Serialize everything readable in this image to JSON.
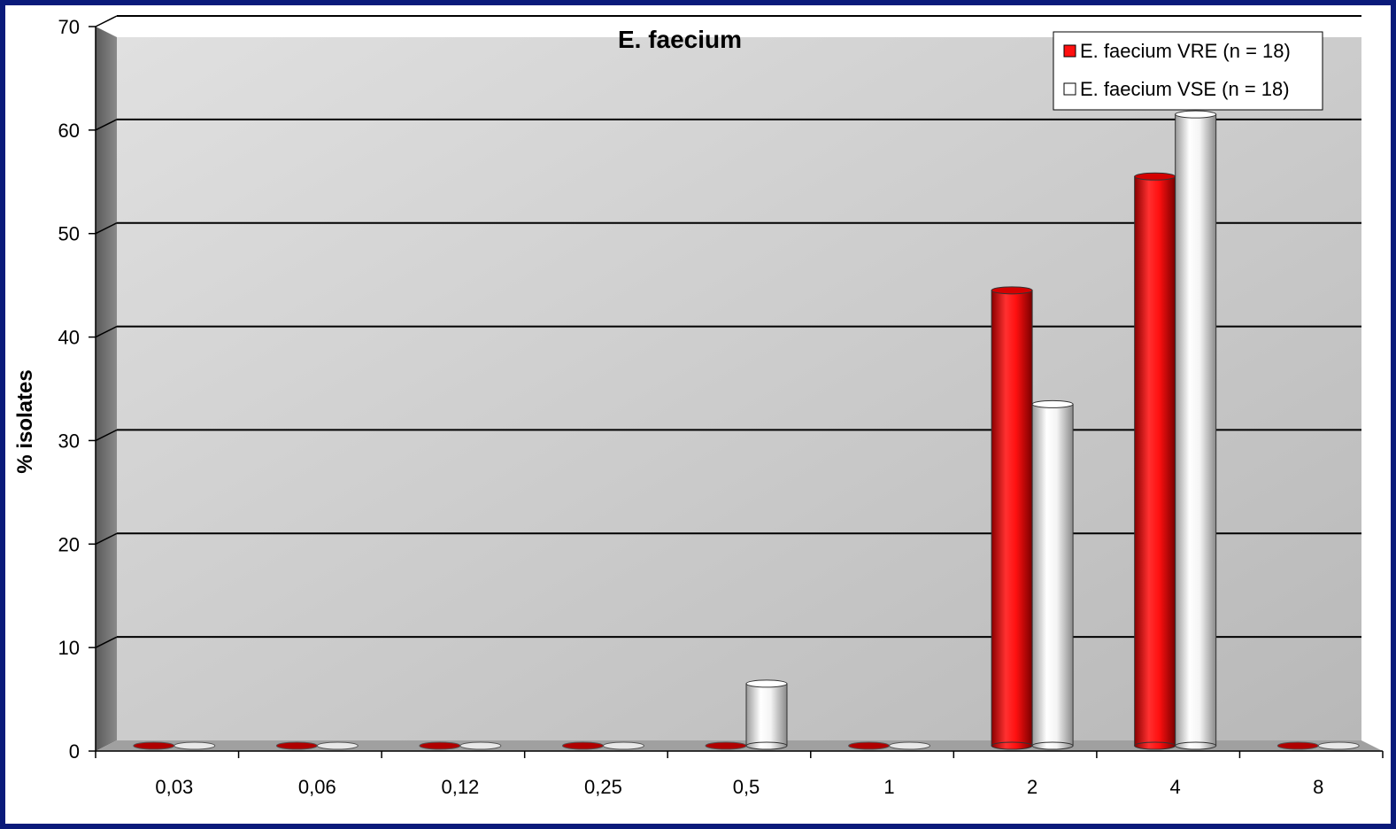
{
  "chart_data": {
    "type": "bar",
    "title": "E. faecium",
    "ylabel": "% isolates",
    "xlabel": "",
    "categories": [
      "0,03",
      "0,06",
      "0,12",
      "0,25",
      "0,5",
      "1",
      "2",
      "4",
      "8"
    ],
    "series": [
      {
        "name": "E. faecium VRE (n = 18)",
        "color": "#ff1010",
        "values": [
          0,
          0,
          0,
          0,
          0,
          0,
          44,
          55,
          0
        ]
      },
      {
        "name": "E. faecium VSE (n = 18)",
        "color": "#ffffff",
        "values": [
          0,
          0,
          0,
          0,
          6,
          0,
          33,
          61,
          0
        ]
      }
    ],
    "ylim": [
      0,
      70
    ],
    "yticks": [
      0,
      10,
      20,
      30,
      40,
      50,
      60,
      70
    ],
    "grid": true,
    "legend_position": "top-right",
    "style": "3d-cylinder"
  },
  "colors": {
    "frame_border": "#0a1a7a",
    "wall": "#c8c8c8",
    "side_wall": "#808080",
    "vre": "#ff1010",
    "vse": "#ffffff"
  }
}
